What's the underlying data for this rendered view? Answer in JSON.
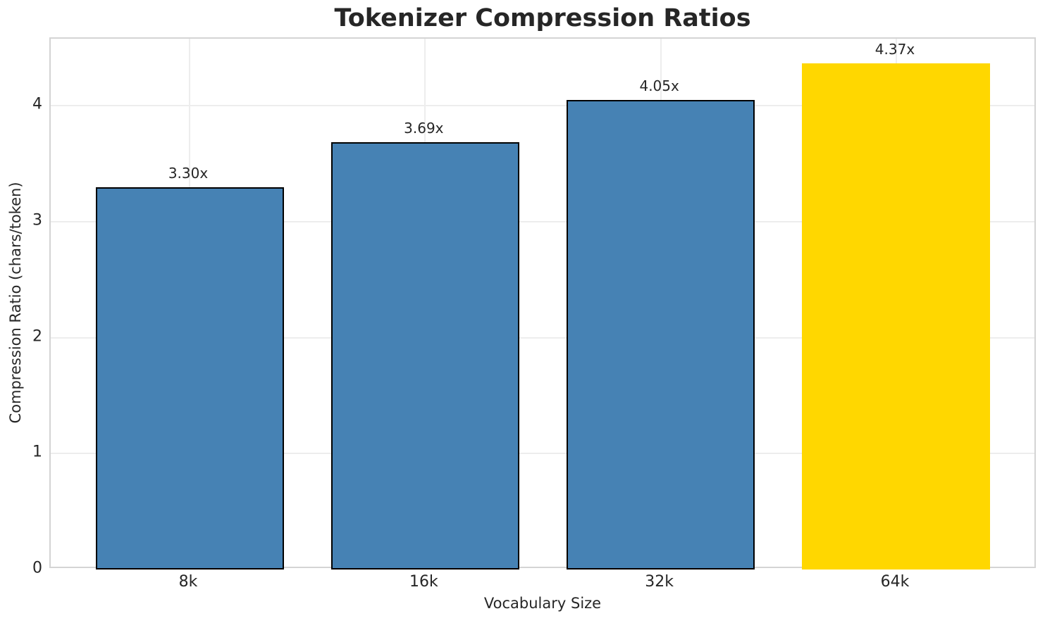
{
  "chart_data": {
    "type": "bar",
    "title": "Tokenizer Compression Ratios",
    "xlabel": "Vocabulary Size",
    "ylabel": "Compression Ratio (chars/token)",
    "categories": [
      "8k",
      "16k",
      "32k",
      "64k"
    ],
    "values": [
      3.3,
      3.69,
      4.05,
      4.37
    ],
    "bar_labels": [
      "3.30x",
      "3.69x",
      "4.05x",
      "4.37x"
    ],
    "ylim": [
      0,
      4.58
    ],
    "yticks": [
      0,
      1,
      2,
      3,
      4
    ],
    "grid": true,
    "legend_position": "none",
    "bar_colors": [
      "#4682B4",
      "#4682B4",
      "#4682B4",
      "#FFD700"
    ],
    "bar_edge_colors": [
      "#000000",
      "#000000",
      "#000000",
      "none"
    ],
    "highlight_index": 3,
    "colors": {
      "steel_blue": "#4682B4",
      "gold": "#FFD700",
      "grid": "#ededed",
      "spine": "#d4d4d4",
      "text": "#262626"
    }
  }
}
